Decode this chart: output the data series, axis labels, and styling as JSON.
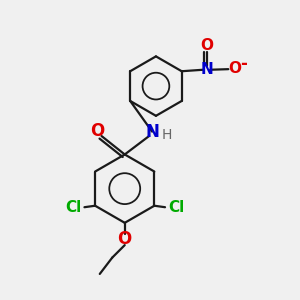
{
  "background_color": "#f0f0f0",
  "bond_color": "#1a1a1a",
  "atom_colors": {
    "O": "#e00000",
    "N": "#0000cc",
    "Cl": "#00aa00",
    "H": "#666666",
    "C": "#1a1a1a"
  },
  "figsize": [
    3.0,
    3.0
  ],
  "dpi": 100,
  "xlim": [
    0,
    10
  ],
  "ylim": [
    0,
    10
  ]
}
